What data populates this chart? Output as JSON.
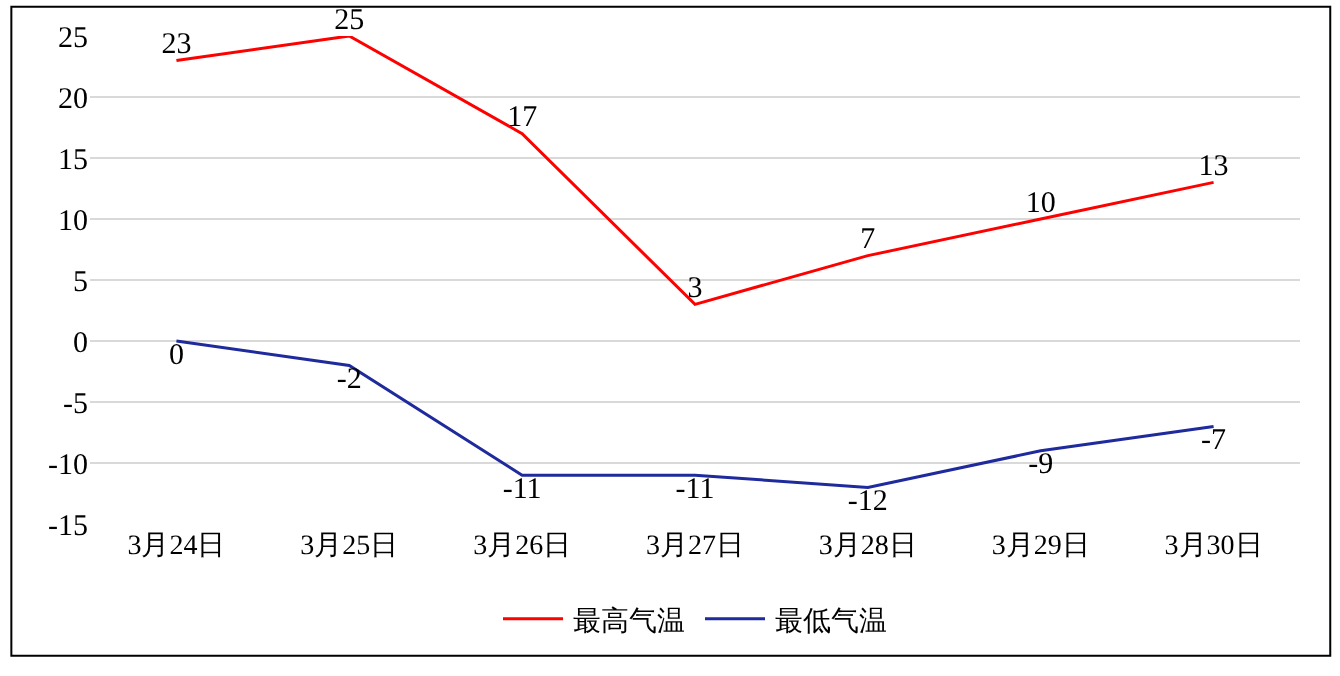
{
  "chart_data": {
    "type": "line",
    "categories": [
      "3月24日",
      "3月25日",
      "3月26日",
      "3月27日",
      "3月28日",
      "3月29日",
      "3月30日"
    ],
    "series": [
      {
        "name": "最高气温",
        "color": "#ff0000",
        "values": [
          23,
          25,
          17,
          3,
          7,
          10,
          13
        ]
      },
      {
        "name": "最低气温",
        "color": "#1f2a9c",
        "values": [
          0,
          -2,
          -11,
          -11,
          -12,
          -9,
          -7
        ]
      }
    ],
    "ylim": [
      -15,
      25
    ],
    "yticks": [
      -15,
      -10,
      -5,
      0,
      5,
      10,
      15,
      20,
      25
    ],
    "grid": "y",
    "legend": "bottom",
    "data_labels": true,
    "marker": "none",
    "line_style": "solid"
  }
}
